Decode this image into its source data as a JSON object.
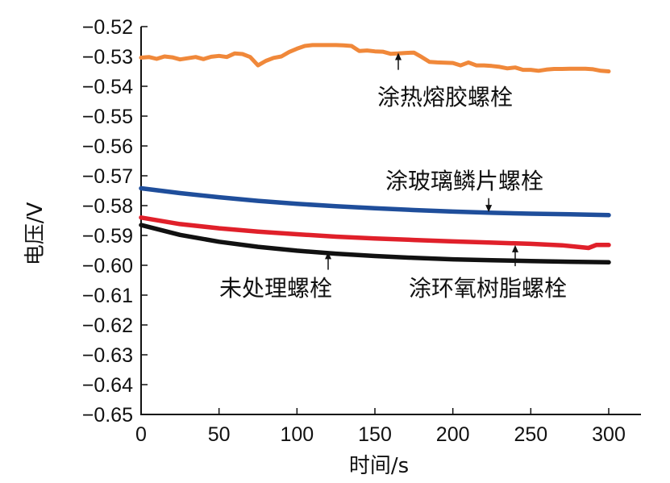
{
  "chart_data": {
    "type": "line",
    "xlabel": "时间/s",
    "ylabel": "电压/V",
    "xlim": [
      0,
      300
    ],
    "ylim": [
      -0.65,
      -0.52
    ],
    "x_ticks": [
      "0",
      "50",
      "100",
      "150",
      "200",
      "250",
      "300"
    ],
    "x_tick_values": [
      0,
      50,
      100,
      150,
      200,
      250,
      300
    ],
    "y_ticks": [
      "−0.52",
      "−0.53",
      "−0.54",
      "−0.55",
      "−0.56",
      "−0.57",
      "−0.58",
      "−0.59",
      "−0.60",
      "−0.61",
      "−0.62",
      "−0.63",
      "−0.64",
      "−0.65"
    ],
    "y_tick_values": [
      -0.52,
      -0.53,
      -0.54,
      -0.55,
      -0.56,
      -0.57,
      -0.58,
      -0.59,
      -0.6,
      -0.61,
      -0.62,
      -0.63,
      -0.64,
      -0.65
    ],
    "grid": false,
    "series": [
      {
        "name": "涂热熔胶螺栓",
        "color": "#F0883A",
        "x": [
          0,
          5,
          10,
          15,
          20,
          25,
          30,
          35,
          40,
          45,
          50,
          55,
          60,
          65,
          70,
          75,
          80,
          85,
          90,
          95,
          100,
          105,
          110,
          115,
          120,
          125,
          130,
          135,
          140,
          145,
          150,
          155,
          160,
          165,
          170,
          175,
          180,
          185,
          190,
          195,
          200,
          205,
          210,
          215,
          220,
          225,
          230,
          235,
          240,
          245,
          250,
          255,
          260,
          265,
          270,
          275,
          280,
          285,
          290,
          295,
          300
        ],
        "y": [
          -0.5304,
          -0.5302,
          -0.5308,
          -0.53,
          -0.5303,
          -0.531,
          -0.5306,
          -0.5302,
          -0.5309,
          -0.5301,
          -0.5298,
          -0.5302,
          -0.529,
          -0.5292,
          -0.5302,
          -0.533,
          -0.5315,
          -0.5305,
          -0.53,
          -0.5285,
          -0.5274,
          -0.5265,
          -0.5262,
          -0.5262,
          -0.5262,
          -0.5262,
          -0.5263,
          -0.5265,
          -0.5282,
          -0.528,
          -0.5283,
          -0.5284,
          -0.5291,
          -0.529,
          -0.5288,
          -0.5287,
          -0.5302,
          -0.5318,
          -0.532,
          -0.5321,
          -0.5322,
          -0.533,
          -0.532,
          -0.533,
          -0.533,
          -0.5332,
          -0.5335,
          -0.534,
          -0.5337,
          -0.5345,
          -0.5345,
          -0.5348,
          -0.5344,
          -0.5342,
          -0.5342,
          -0.5341,
          -0.5341,
          -0.5341,
          -0.5343,
          -0.5348,
          -0.535
        ]
      },
      {
        "name": "涂玻璃鳞片螺栓",
        "color": "#1F4E9B",
        "x": [
          0,
          25,
          50,
          75,
          100,
          125,
          150,
          175,
          200,
          225,
          250,
          275,
          300
        ],
        "y": [
          -0.5742,
          -0.5758,
          -0.5772,
          -0.5784,
          -0.5794,
          -0.5802,
          -0.5809,
          -0.5815,
          -0.582,
          -0.5824,
          -0.5827,
          -0.5829,
          -0.5832
        ]
      },
      {
        "name": "涂环氧树脂螺栓",
        "color": "#E0202A",
        "x": [
          0,
          25,
          50,
          75,
          100,
          125,
          150,
          175,
          200,
          225,
          250,
          270,
          280,
          287,
          292,
          300
        ],
        "y": [
          -0.584,
          -0.5862,
          -0.5876,
          -0.5887,
          -0.5896,
          -0.5904,
          -0.591,
          -0.5915,
          -0.592,
          -0.5924,
          -0.5928,
          -0.5933,
          -0.5938,
          -0.5942,
          -0.5932,
          -0.5932
        ]
      },
      {
        "name": "未处理螺栓",
        "color": "#111111",
        "x": [
          0,
          25,
          50,
          75,
          100,
          125,
          150,
          175,
          200,
          225,
          250,
          275,
          300
        ],
        "y": [
          -0.5865,
          -0.5898,
          -0.5921,
          -0.5938,
          -0.5951,
          -0.5961,
          -0.5969,
          -0.5975,
          -0.598,
          -0.5983,
          -0.5986,
          -0.5988,
          -0.599
        ]
      }
    ],
    "annotations": [
      {
        "text": "涂热熔胶螺栓",
        "series": "涂热熔胶螺栓",
        "arrow_to_x": 165,
        "arrow_to_y": -0.5288,
        "arrow_from_y": -0.5345
      },
      {
        "text": "涂玻璃鳞片螺栓",
        "series": "涂玻璃鳞片螺栓",
        "arrow_to_x": 223,
        "arrow_to_y": -0.5822,
        "arrow_from_y": -0.5775
      },
      {
        "text": "涂环氧树脂螺栓",
        "series": "涂环氧树脂螺栓",
        "arrow_to_x": 240,
        "arrow_to_y": -0.5932,
        "arrow_from_y": -0.6003
      },
      {
        "text": "未处理螺栓",
        "series": "未处理螺栓",
        "arrow_to_x": 120,
        "arrow_to_y": -0.5955,
        "arrow_from_y": -0.6015
      }
    ]
  }
}
